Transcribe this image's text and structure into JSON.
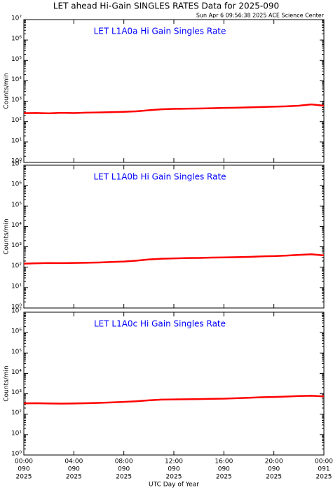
{
  "header": {
    "title": "LET ahead Hi-Gain SINGLES RATES Data for 2025-090",
    "timestamp": "Sun Apr  6 09:56:38 2025 ACE Science Center"
  },
  "chart_data": [
    {
      "type": "line",
      "title": "LET L1A0a Hi Gain Singles Rate",
      "ylabel": "Counts/min",
      "log_y": true,
      "color": "#ff0000",
      "x": [
        0,
        1,
        2,
        3,
        4,
        5,
        6,
        7,
        8,
        9,
        10,
        11,
        12,
        13,
        14,
        15,
        16,
        17,
        18,
        19,
        20,
        21,
        22,
        23,
        24
      ],
      "values": [
        260,
        265,
        255,
        270,
        262,
        275,
        280,
        290,
        300,
        320,
        360,
        400,
        420,
        430,
        440,
        450,
        470,
        480,
        500,
        520,
        540,
        560,
        600,
        700,
        600
      ],
      "xlim": [
        0,
        24
      ],
      "xticks": [
        0,
        4,
        8,
        12,
        16,
        20,
        24
      ],
      "ylim": [
        1,
        10000000
      ],
      "yticks": [
        {
          "value": 1,
          "label": "10⁰"
        },
        {
          "value": 10,
          "label": "10¹"
        },
        {
          "value": 100,
          "label": "10²"
        },
        {
          "value": 1000,
          "label": "10³"
        },
        {
          "value": 10000,
          "label": "10⁴"
        },
        {
          "value": 100000,
          "label": "10⁵"
        },
        {
          "value": 1000000,
          "label": "10⁶"
        },
        {
          "value": 10000000,
          "label": "10⁷"
        }
      ]
    },
    {
      "type": "line",
      "title": "LET L1A0b Hi Gain Singles Rate",
      "ylabel": "Counts/min",
      "log_y": true,
      "color": "#ff0000",
      "x": [
        0,
        1,
        2,
        3,
        4,
        5,
        6,
        7,
        8,
        9,
        10,
        11,
        12,
        13,
        14,
        15,
        16,
        17,
        18,
        19,
        20,
        21,
        22,
        23,
        24
      ],
      "values": [
        150,
        155,
        160,
        158,
        162,
        165,
        170,
        180,
        190,
        210,
        240,
        260,
        270,
        280,
        285,
        295,
        300,
        310,
        320,
        340,
        350,
        370,
        400,
        430,
        380
      ],
      "xlim": [
        0,
        24
      ],
      "xticks": [
        0,
        4,
        8,
        12,
        16,
        20,
        24
      ],
      "ylim": [
        1,
        10000000
      ],
      "yticks": [
        {
          "value": 1,
          "label": "10⁰"
        },
        {
          "value": 10,
          "label": "10¹"
        },
        {
          "value": 100,
          "label": "10²"
        },
        {
          "value": 1000,
          "label": "10³"
        },
        {
          "value": 10000,
          "label": "10⁴"
        },
        {
          "value": 100000,
          "label": "10⁵"
        },
        {
          "value": 1000000,
          "label": "10⁶"
        },
        {
          "value": 10000000,
          "label": "10⁷"
        }
      ]
    },
    {
      "type": "line",
      "title": "LET L1A0c Hi Gain Singles Rate",
      "ylabel": "Counts/min",
      "xlabel": "UTC Day of Year",
      "log_y": true,
      "color": "#ff0000",
      "x": [
        0,
        1,
        2,
        3,
        4,
        5,
        6,
        7,
        8,
        9,
        10,
        11,
        12,
        13,
        14,
        15,
        16,
        17,
        18,
        19,
        20,
        21,
        22,
        23,
        24
      ],
      "values": [
        340,
        345,
        335,
        330,
        335,
        345,
        360,
        380,
        400,
        430,
        480,
        520,
        530,
        540,
        550,
        570,
        580,
        610,
        640,
        680,
        700,
        730,
        780,
        800,
        750
      ],
      "xlim": [
        0,
        24
      ],
      "xticks": [
        {
          "value": 0,
          "label": "00:00"
        },
        {
          "value": 4,
          "label": "04:00"
        },
        {
          "value": 8,
          "label": "08:00"
        },
        {
          "value": 12,
          "label": "12:00"
        },
        {
          "value": 16,
          "label": "16:00"
        },
        {
          "value": 20,
          "label": "20:00"
        },
        {
          "value": 24,
          "label": "00:00"
        }
      ],
      "xtick_days": [
        "090",
        "090",
        "090",
        "090",
        "090",
        "090",
        "091"
      ],
      "xtick_years": [
        "2025",
        "2025",
        "2025",
        "2025",
        "2025",
        "2025",
        "2025"
      ],
      "ylim": [
        1,
        10000000
      ],
      "yticks": [
        {
          "value": 1,
          "label": "10⁰"
        },
        {
          "value": 10,
          "label": "10¹"
        },
        {
          "value": 100,
          "label": "10²"
        },
        {
          "value": 1000,
          "label": "10³"
        },
        {
          "value": 10000,
          "label": "10⁴"
        },
        {
          "value": 100000,
          "label": "10⁵"
        },
        {
          "value": 1000000,
          "label": "10⁶"
        },
        {
          "value": 10000000,
          "label": "10⁷"
        }
      ]
    }
  ]
}
